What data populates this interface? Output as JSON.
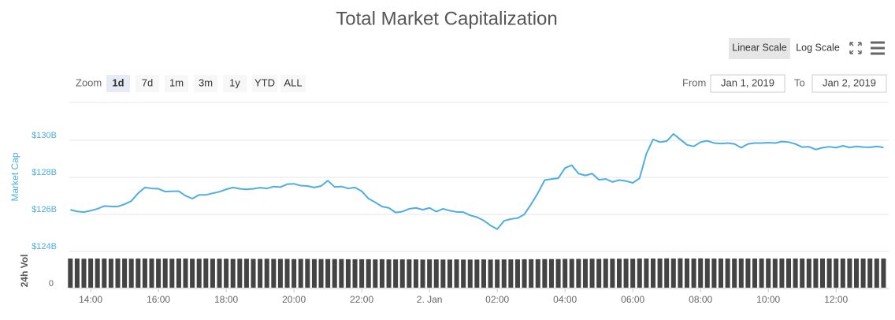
{
  "chart_data": [
    {
      "type": "line",
      "title": "Total Market Capitalization",
      "y_label": "Market Cap",
      "color": "#4eaee0",
      "grid": true,
      "xlim": [
        13.37,
        37.46
      ],
      "x": [
        13.4,
        13.6,
        13.8,
        14,
        14.2,
        14.4,
        14.6,
        14.8,
        15,
        15.2,
        15.4,
        15.6,
        15.8,
        16,
        16.2,
        16.4,
        16.6,
        16.8,
        17,
        17.2,
        17.4,
        17.6,
        17.8,
        18,
        18.2,
        18.4,
        18.6,
        18.8,
        19,
        19.2,
        19.4,
        19.6,
        19.8,
        20,
        20.2,
        20.4,
        20.6,
        20.8,
        21,
        21.2,
        21.4,
        21.6,
        21.8,
        22,
        22.2,
        22.4,
        22.6,
        22.8,
        23,
        23.2,
        23.4,
        23.6,
        23.8,
        24,
        24.2,
        24.4,
        24.6,
        24.8,
        25,
        25.2,
        25.4,
        25.6,
        25.8,
        26,
        26.2,
        26.4,
        26.6,
        26.8,
        27,
        27.2,
        27.4,
        27.6,
        27.8,
        28,
        28.2,
        28.4,
        28.6,
        28.8,
        29,
        29.2,
        29.4,
        29.6,
        29.8,
        30,
        30.2,
        30.4,
        30.6,
        30.8,
        31,
        31.2,
        31.4,
        31.6,
        31.8,
        32,
        32.2,
        32.4,
        32.6,
        32.8,
        33,
        33.2,
        33.4,
        33.6,
        33.8,
        34,
        34.2,
        34.4,
        34.6,
        34.8,
        35,
        35.2,
        35.4,
        35.6,
        35.8,
        36,
        36.2,
        36.4,
        36.6,
        36.8,
        37,
        37.2,
        37.4
      ],
      "values": [
        126.25,
        126.16,
        126.12,
        126.2,
        126.3,
        126.45,
        126.43,
        126.42,
        126.55,
        126.72,
        127.14,
        127.45,
        127.4,
        127.38,
        127.23,
        127.25,
        127.25,
        127.0,
        126.85,
        127.05,
        127.05,
        127.14,
        127.22,
        127.35,
        127.45,
        127.38,
        127.35,
        127.38,
        127.44,
        127.4,
        127.5,
        127.47,
        127.63,
        127.65,
        127.55,
        127.53,
        127.45,
        127.53,
        127.82,
        127.48,
        127.5,
        127.4,
        127.45,
        127.25,
        126.85,
        126.65,
        126.42,
        126.35,
        126.1,
        126.15,
        126.3,
        126.35,
        126.25,
        126.35,
        126.15,
        126.3,
        126.2,
        126.13,
        126.12,
        125.95,
        125.85,
        125.67,
        125.4,
        125.2,
        125.65,
        125.75,
        125.8,
        126.0,
        126.55,
        127.15,
        127.85,
        127.91,
        127.95,
        128.5,
        128.65,
        128.2,
        128.1,
        128.2,
        127.87,
        127.91,
        127.75,
        127.85,
        127.8,
        127.7,
        127.95,
        129.27,
        130.05,
        129.9,
        129.95,
        130.34,
        130.05,
        129.75,
        129.67,
        129.9,
        129.97,
        129.85,
        129.82,
        129.85,
        129.8,
        129.6,
        129.8,
        129.85,
        129.85,
        129.87,
        129.85,
        129.93,
        129.9,
        129.8,
        129.63,
        129.65,
        129.5,
        129.6,
        129.65,
        129.6,
        129.7,
        129.61,
        129.67,
        129.63,
        129.62,
        129.67,
        129.61
      ],
      "ylim": [
        124,
        132.04
      ],
      "yticks": [
        {
          "value": 124,
          "label": "$124B"
        },
        {
          "value": 126,
          "label": "$126B"
        },
        {
          "value": 128,
          "label": "$128B"
        },
        {
          "value": 130,
          "label": "$130B"
        }
      ]
    },
    {
      "type": "bar",
      "y_label": "24h Vol",
      "color": "#444444",
      "xlim": [
        13.37,
        37.46
      ],
      "x": [
        13.4,
        13.6,
        13.8,
        14,
        14.2,
        14.4,
        14.6,
        14.8,
        15,
        15.2,
        15.4,
        15.6,
        15.8,
        16,
        16.2,
        16.4,
        16.6,
        16.8,
        17,
        17.2,
        17.4,
        17.6,
        17.8,
        18,
        18.2,
        18.4,
        18.6,
        18.8,
        19,
        19.2,
        19.4,
        19.6,
        19.8,
        20,
        20.2,
        20.4,
        20.6,
        20.8,
        21,
        21.2,
        21.4,
        21.6,
        21.8,
        22,
        22.2,
        22.4,
        22.6,
        22.8,
        23,
        23.2,
        23.4,
        23.6,
        23.8,
        24,
        24.2,
        24.4,
        24.6,
        24.8,
        25,
        25.2,
        25.4,
        25.6,
        25.8,
        26,
        26.2,
        26.4,
        26.6,
        26.8,
        27,
        27.2,
        27.4,
        27.6,
        27.8,
        28,
        28.2,
        28.4,
        28.6,
        28.8,
        29,
        29.2,
        29.4,
        29.6,
        29.8,
        30,
        30.2,
        30.4,
        30.6,
        30.8,
        31,
        31.2,
        31.4,
        31.6,
        31.8,
        32,
        32.2,
        32.4,
        32.6,
        32.8,
        33,
        33.2,
        33.4,
        33.6,
        33.8,
        34,
        34.2,
        34.4,
        34.6,
        34.8,
        35,
        35.2,
        35.4,
        35.6,
        35.8,
        36,
        36.2,
        36.4,
        36.6,
        36.8,
        37,
        37.2,
        37.4
      ],
      "values": [
        17.2,
        17.2,
        17.1,
        17.2,
        17.2,
        17.2,
        17.1,
        17.2,
        17.2,
        17.1,
        17.2,
        17.2,
        17.2,
        17.1,
        17.2,
        17.1,
        17.2,
        17.2,
        17.1,
        17.1,
        17.2,
        17.1,
        17.1,
        17.1,
        17.0,
        17.1,
        17.1,
        17.0,
        17.0,
        17.1,
        17.0,
        17.0,
        17.0,
        16.9,
        17.0,
        17.0,
        16.9,
        16.9,
        16.9,
        16.9,
        16.9,
        16.8,
        16.8,
        16.8,
        16.8,
        16.7,
        16.8,
        16.7,
        16.7,
        16.7,
        16.7,
        16.7,
        16.6,
        16.7,
        16.7,
        16.6,
        16.6,
        16.7,
        16.6,
        16.6,
        16.6,
        16.7,
        16.6,
        16.6,
        16.7,
        16.7,
        16.7,
        16.8,
        16.8,
        16.8,
        16.9,
        16.9,
        16.9,
        17.0,
        17.0,
        17.0,
        17.0,
        17.1,
        17.0,
        17.1,
        17.1,
        17.1,
        17.1,
        17.1,
        17.2,
        17.2,
        17.2,
        17.2,
        17.3,
        17.2,
        17.3,
        17.2,
        17.2,
        17.3,
        17.2,
        17.2,
        17.2,
        17.2,
        17.2,
        17.2,
        17.2,
        17.2,
        17.2,
        17.2,
        17.1,
        17.2,
        17.2,
        17.2,
        17.2,
        17.1,
        17.2,
        17.2,
        17.2,
        17.2,
        17.2,
        17.2,
        17.2,
        17.2,
        17.2,
        17.2,
        17.2
      ],
      "ylim": [
        0,
        20
      ],
      "yticks": [
        0
      ],
      "xticks": [
        {
          "value": 14,
          "label": "14:00"
        },
        {
          "value": 16,
          "label": "16:00"
        },
        {
          "value": 18,
          "label": "18:00"
        },
        {
          "value": 20,
          "label": "20:00"
        },
        {
          "value": 22,
          "label": "22:00"
        },
        {
          "value": 24,
          "label": "2. Jan"
        },
        {
          "value": 26,
          "label": "02:00"
        },
        {
          "value": 28,
          "label": "04:00"
        },
        {
          "value": 30,
          "label": "06:00"
        },
        {
          "value": 32,
          "label": "08:00"
        },
        {
          "value": 34,
          "label": "10:00"
        },
        {
          "value": 36,
          "label": "12:00"
        }
      ]
    }
  ],
  "scale_buttons": {
    "buttons": [
      "Linear Scale",
      "Log Scale"
    ],
    "selected": 0
  },
  "range_selector": {
    "label": "Zoom",
    "buttons": [
      "1d",
      "7d",
      "1m",
      "3m",
      "1y",
      "YTD",
      "ALL"
    ],
    "selected": 0,
    "from_label": "From",
    "from": "Jan 1, 2019",
    "to_label": "To",
    "to": "Jan 2, 2019"
  }
}
